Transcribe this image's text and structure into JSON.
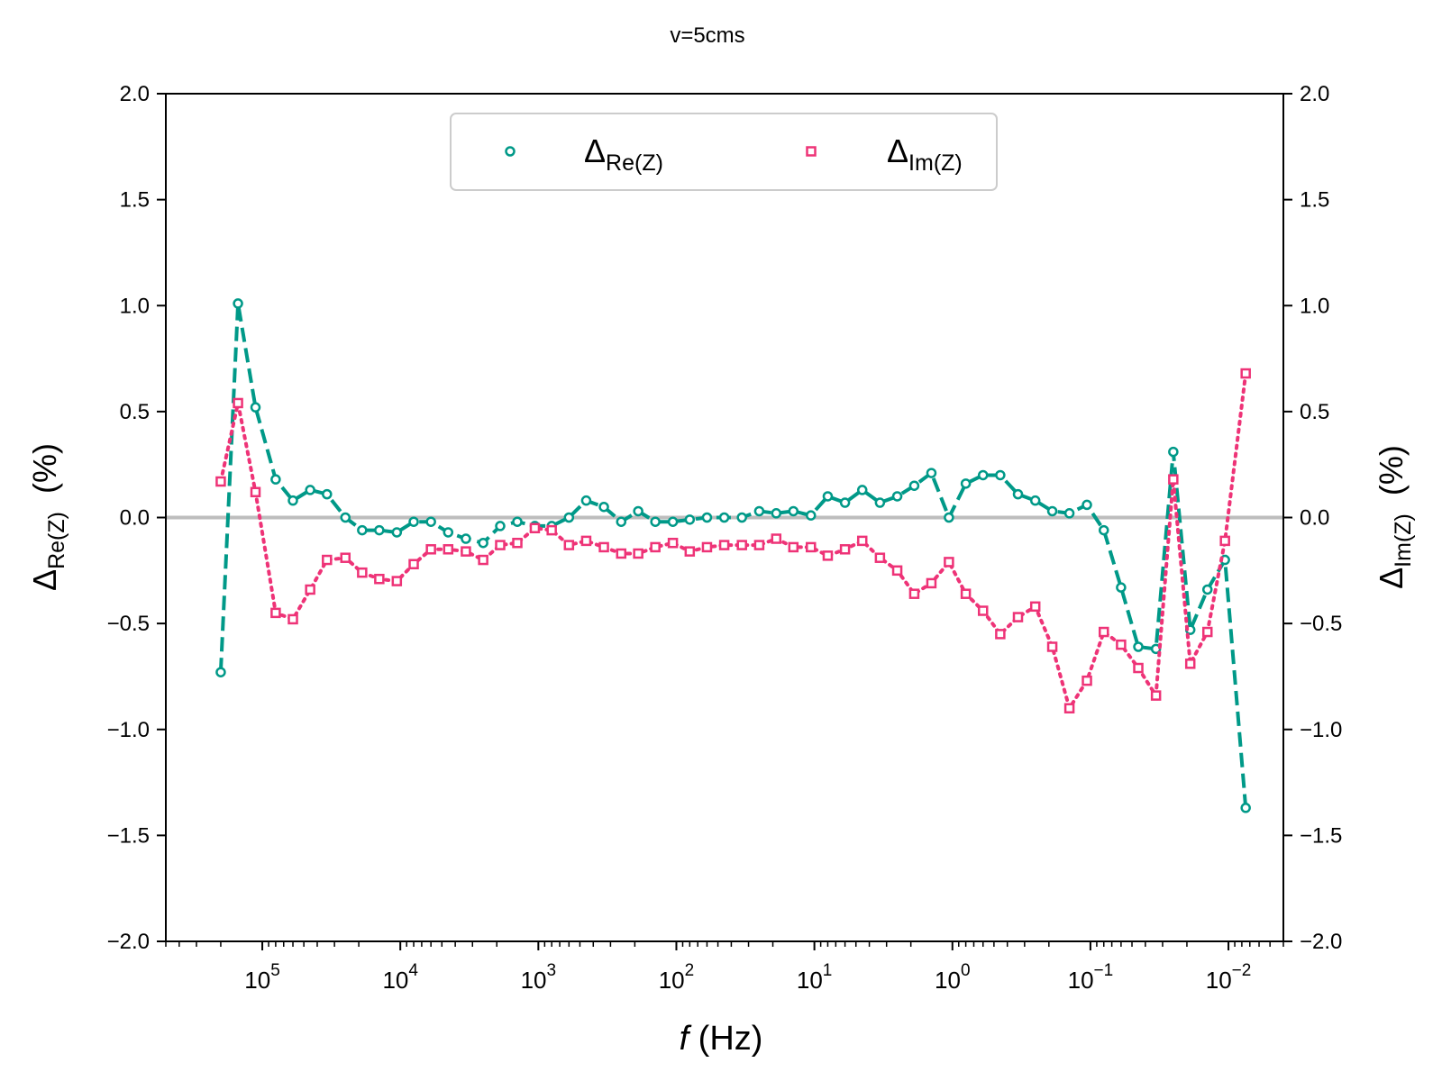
{
  "chart_data": {
    "type": "line",
    "title": "v=5cms",
    "x_scale": "log",
    "x_reversed": true,
    "xlim": [
      500000,
      0.004
    ],
    "ylim": [
      -2.0,
      2.0
    ],
    "xlabel_italic": "f",
    "xlabel_rest": " (Hz)",
    "ylabel_left": {
      "main": "Δ",
      "sub": "Re(Z)",
      "unit": "  (%)"
    },
    "ylabel_right": {
      "main": "Δ",
      "sub": "Im(Z)",
      "unit": "  (%)"
    },
    "y_ticks": [
      "2.0",
      "1.5",
      "1.0",
      "0.5",
      "0.0",
      "−0.5",
      "−1.0",
      "−1.5",
      "−2.0"
    ],
    "y_tick_values": [
      2.0,
      1.5,
      1.0,
      0.5,
      0.0,
      -0.5,
      -1.0,
      -1.5,
      -2.0
    ],
    "x_ticks": [
      {
        "base": "10",
        "exp": "5",
        "value": 100000
      },
      {
        "base": "10",
        "exp": "4",
        "value": 10000
      },
      {
        "base": "10",
        "exp": "3",
        "value": 1000
      },
      {
        "base": "10",
        "exp": "2",
        "value": 100
      },
      {
        "base": "10",
        "exp": "1",
        "value": 10
      },
      {
        "base": "10",
        "exp": "0",
        "value": 1
      },
      {
        "base": "10",
        "exp": "−1",
        "value": 0.1
      },
      {
        "base": "10",
        "exp": "−2",
        "value": 0.01
      }
    ],
    "zero_line": true,
    "legend_position": "upper center",
    "series": [
      {
        "name_main": "Δ",
        "name_sub": "Re(Z)",
        "color": "#009988",
        "marker": "circle",
        "line_style": "dashed",
        "x": [
          200000,
          150000,
          112000,
          80000,
          60000,
          45000,
          34000,
          25000,
          18900,
          14200,
          10600,
          8000,
          6000,
          4500,
          3350,
          2510,
          1890,
          1420,
          1060,
          800,
          600,
          450,
          335,
          251,
          189,
          142,
          106,
          80,
          60,
          45,
          33.5,
          25.1,
          18.9,
          14.2,
          10.6,
          8,
          6,
          4.5,
          3.35,
          2.51,
          1.89,
          1.42,
          1.06,
          0.8,
          0.6,
          0.45,
          0.335,
          0.251,
          0.189,
          0.142,
          0.106,
          0.08,
          0.06,
          0.045,
          0.0335,
          0.0251,
          0.0189,
          0.0142,
          0.0106,
          0.0075
        ],
        "values": [
          -0.73,
          1.01,
          0.52,
          0.18,
          0.08,
          0.13,
          0.11,
          0.0,
          -0.06,
          -0.06,
          -0.07,
          -0.02,
          -0.02,
          -0.07,
          -0.1,
          -0.12,
          -0.04,
          -0.02,
          -0.04,
          -0.04,
          0.0,
          0.08,
          0.05,
          -0.02,
          0.03,
          -0.02,
          -0.02,
          -0.01,
          0.0,
          0.0,
          0.0,
          0.03,
          0.02,
          0.03,
          0.01,
          0.1,
          0.07,
          0.13,
          0.07,
          0.1,
          0.15,
          0.21,
          0.0,
          0.16,
          0.2,
          0.2,
          0.11,
          0.08,
          0.03,
          0.02,
          0.06,
          -0.06,
          -0.33,
          -0.61,
          -0.62,
          0.31,
          -0.53,
          -0.34,
          -0.2,
          -1.37
        ]
      },
      {
        "name_main": "Δ",
        "name_sub": "Im(Z)",
        "color": "#EE3377",
        "marker": "square",
        "line_style": "dotted",
        "x": [
          200000,
          150000,
          112000,
          80000,
          60000,
          45000,
          34000,
          25000,
          18900,
          14200,
          10600,
          8000,
          6000,
          4500,
          3350,
          2510,
          1890,
          1420,
          1060,
          800,
          600,
          450,
          335,
          251,
          189,
          142,
          106,
          80,
          60,
          45,
          33.5,
          25.1,
          18.9,
          14.2,
          10.6,
          8,
          6,
          4.5,
          3.35,
          2.51,
          1.89,
          1.42,
          1.06,
          0.8,
          0.6,
          0.45,
          0.335,
          0.251,
          0.189,
          0.142,
          0.106,
          0.08,
          0.06,
          0.045,
          0.0335,
          0.0251,
          0.0189,
          0.0142,
          0.0106,
          0.0075
        ],
        "values": [
          0.17,
          0.54,
          0.12,
          -0.45,
          -0.48,
          -0.34,
          -0.2,
          -0.19,
          -0.26,
          -0.29,
          -0.3,
          -0.22,
          -0.15,
          -0.15,
          -0.16,
          -0.2,
          -0.13,
          -0.12,
          -0.05,
          -0.06,
          -0.13,
          -0.11,
          -0.14,
          -0.17,
          -0.17,
          -0.14,
          -0.12,
          -0.16,
          -0.14,
          -0.13,
          -0.13,
          -0.13,
          -0.1,
          -0.14,
          -0.14,
          -0.18,
          -0.15,
          -0.11,
          -0.19,
          -0.25,
          -0.36,
          -0.31,
          -0.21,
          -0.36,
          -0.44,
          -0.55,
          -0.47,
          -0.42,
          -0.61,
          -0.9,
          -0.77,
          -0.54,
          -0.6,
          -0.71,
          -0.84,
          0.18,
          -0.69,
          -0.54,
          -0.11,
          0.68
        ]
      }
    ]
  }
}
